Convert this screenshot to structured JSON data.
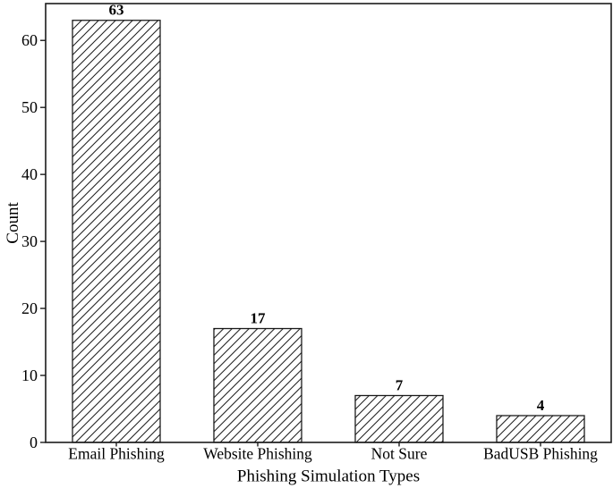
{
  "figure": {
    "background": "#ffffff",
    "axis_color": "#1c1c1c",
    "hatch_color": "#1c1c1c"
  },
  "chart_data": {
    "type": "bar",
    "title": "",
    "categories": [
      "Email Phishing",
      "Website Phishing",
      "Not Sure",
      "BadUSB Phishing"
    ],
    "values": [
      63,
      17,
      7,
      4
    ],
    "bar_value_labels": [
      "63",
      "17",
      "7",
      "4"
    ],
    "xlabel": "Phishing Simulation Types",
    "ylabel": "Count",
    "yticks": [
      0,
      10,
      20,
      30,
      40,
      50,
      60
    ],
    "ylim": [
      0,
      65.5
    ],
    "grid": false,
    "legend_position": "none",
    "bar_fill": "#ffffff",
    "bar_edge_color": "#1c1c1c",
    "hatch": "diagonal-forward-slash"
  }
}
